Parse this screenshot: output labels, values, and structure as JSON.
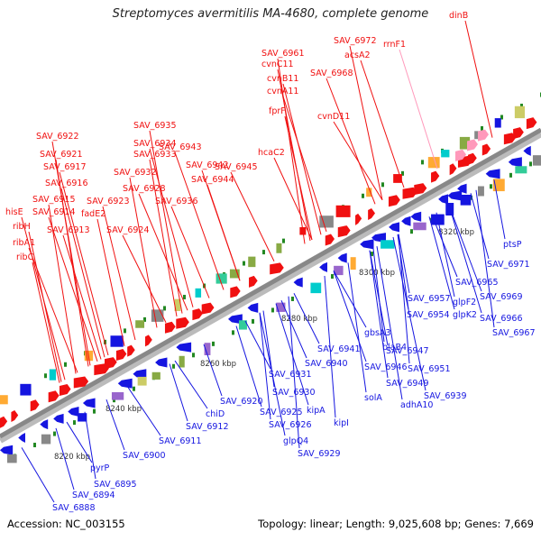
{
  "title": "Streptomyces avermitilis MA-4680, complete genome",
  "footer": {
    "accession": "Accession: NC_003155",
    "topology": "Topology: linear; Length: 9,025,608 bp; Genes: 7,669"
  },
  "ticks": [
    "8220 kbp",
    "8240 kbp",
    "8260 kbp",
    "8280 kbp",
    "8300 kbp",
    "8320 kbp"
  ],
  "colors": {
    "forward": "#f01010",
    "reverse": "#1515e0",
    "rna": "#ff99bb",
    "axis": "#888888",
    "tick_mark": "#228822"
  },
  "top_labels": [
    "dinB",
    "SAV_6972",
    "rrnF1",
    "acsA2",
    "SAV_6968",
    "SAV_6961",
    "cvnC11",
    "cvnB11",
    "cvnA11",
    "cvnD11",
    "fprF",
    "SAV_6935",
    "SAV_6922",
    "SAV_6934",
    "SAV_6943",
    "SAV_6933",
    "SAV_6921",
    "SAV_6942",
    "SAV_6945",
    "SAV_6917",
    "SAV_6932",
    "SAV_6944",
    "hcaC2",
    "SAV_6916",
    "SAV_6928",
    "SAV_6915",
    "SAV_6923",
    "SAV_6936",
    "hisE",
    "SAV_6914",
    "fadE2",
    "ribH",
    "SAV_6913",
    "SAV_6924",
    "ribA1",
    "ribC"
  ],
  "bottom_labels": [
    "ptsP",
    "SAV_6971",
    "SAV_6965",
    "SAV_6969",
    "SAV_6957",
    "glpF2",
    "glpK2",
    "SAV_6966",
    "SAV_6954",
    "SAV_6967",
    "SAV_6941",
    "gbsA3",
    "blaB4",
    "SAV_6947",
    "SAV_6940",
    "SAV_6946",
    "SAV_6951",
    "SAV_6949",
    "SAV_6931",
    "SAV_6939",
    "SAV_6930",
    "solA",
    "adhA10",
    "kipA",
    "kipI",
    "SAV_6920",
    "SAV_6925",
    "chiD",
    "SAV_6926",
    "SAV_6912",
    "glpQ4",
    "SAV_6911",
    "SAV_6929",
    "SAV_6900",
    "pyrP",
    "SAV_6888",
    "SAV_6895",
    "SAV_6894"
  ]
}
